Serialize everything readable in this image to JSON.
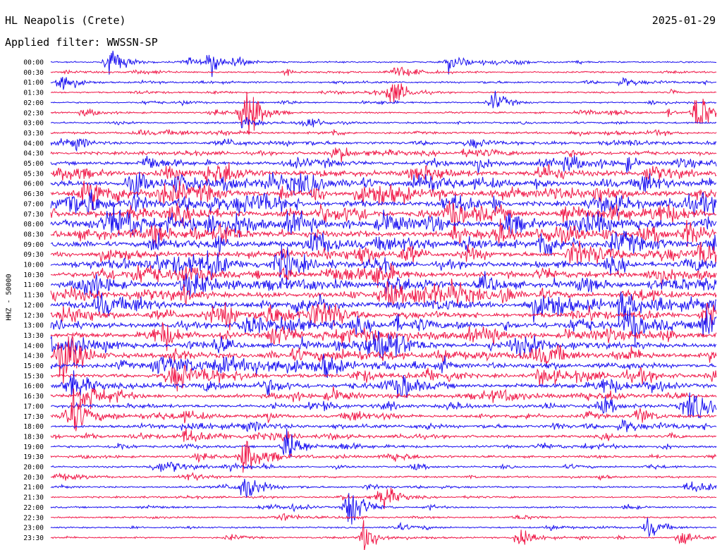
{
  "header": {
    "station": "HL Neapolis (Crete)",
    "date": "2025-01-29",
    "filter": "Applied filter: WWSSN-SP"
  },
  "colors": {
    "trace_a": "#1a10f0",
    "trace_b": "#f01848",
    "background": "#ffffff",
    "text": "#000000"
  },
  "chart_data": {
    "type": "helicorder",
    "ylabel": "HHZ - 50000",
    "line_interval_minutes": 30,
    "color_cycle": [
      "blue",
      "red"
    ],
    "rows": [
      "00:00",
      "00:30",
      "01:00",
      "01:30",
      "02:00",
      "02:30",
      "03:00",
      "03:30",
      "04:00",
      "04:30",
      "05:00",
      "05:30",
      "06:00",
      "06:30",
      "07:00",
      "07:30",
      "08:00",
      "08:30",
      "09:00",
      "09:30",
      "10:00",
      "10:30",
      "11:00",
      "11:30",
      "12:00",
      "12:30",
      "13:00",
      "13:30",
      "14:00",
      "14:30",
      "15:00",
      "15:30",
      "16:00",
      "16:30",
      "17:00",
      "17:30",
      "18:00",
      "18:30",
      "19:00",
      "19:30",
      "20:00",
      "20:30",
      "21:00",
      "21:30",
      "22:00",
      "22:30",
      "23:00",
      "23:30"
    ],
    "activity_level": [
      0.12,
      0.15,
      0.18,
      0.12,
      0.14,
      0.16,
      0.22,
      0.3,
      0.4,
      0.5,
      0.62,
      0.78,
      0.92,
      0.95,
      0.95,
      0.95,
      0.95,
      0.95,
      0.9,
      0.9,
      0.92,
      0.92,
      0.95,
      0.95,
      0.95,
      0.95,
      0.9,
      0.9,
      0.88,
      0.85,
      0.75,
      0.7,
      0.68,
      0.62,
      0.55,
      0.5,
      0.45,
      0.38,
      0.32,
      0.28,
      0.22,
      0.2,
      0.18,
      0.16,
      0.16,
      0.14,
      0.14,
      0.14
    ],
    "notable_events": [
      {
        "row": "00:00",
        "minute": 2.7,
        "amplitude": 1.2
      },
      {
        "row": "00:00",
        "minute": 7.3,
        "amplitude": 1.0
      },
      {
        "row": "00:00",
        "minute": 18.0,
        "amplitude": 1.1
      },
      {
        "row": "01:00",
        "minute": 0.5,
        "amplitude": 1.2
      },
      {
        "row": "01:30",
        "minute": 15.4,
        "amplitude": 1.3
      },
      {
        "row": "02:00",
        "minute": 20.0,
        "amplitude": 1.0
      },
      {
        "row": "02:30",
        "minute": 8.8,
        "amplitude": 3.5
      },
      {
        "row": "02:30",
        "minute": 29.2,
        "amplitude": 2.2
      },
      {
        "row": "14:30",
        "minute": 0.8,
        "amplitude": 2.0
      },
      {
        "row": "17:30",
        "minute": 0.9,
        "amplitude": 2.5
      },
      {
        "row": "19:00",
        "minute": 10.7,
        "amplitude": 1.6
      },
      {
        "row": "19:30",
        "minute": 8.8,
        "amplitude": 2.0
      },
      {
        "row": "21:00",
        "minute": 8.8,
        "amplitude": 1.5
      },
      {
        "row": "21:30",
        "minute": 15.0,
        "amplitude": 1.2
      },
      {
        "row": "22:00",
        "minute": 13.5,
        "amplitude": 2.5
      },
      {
        "row": "23:00",
        "minute": 27.0,
        "amplitude": 1.0
      },
      {
        "row": "23:30",
        "minute": 14.2,
        "amplitude": 1.5
      },
      {
        "row": "23:30",
        "minute": 21.2,
        "amplitude": 1.4
      },
      {
        "row": "23:30",
        "minute": 28.5,
        "amplitude": 1.0
      }
    ]
  }
}
